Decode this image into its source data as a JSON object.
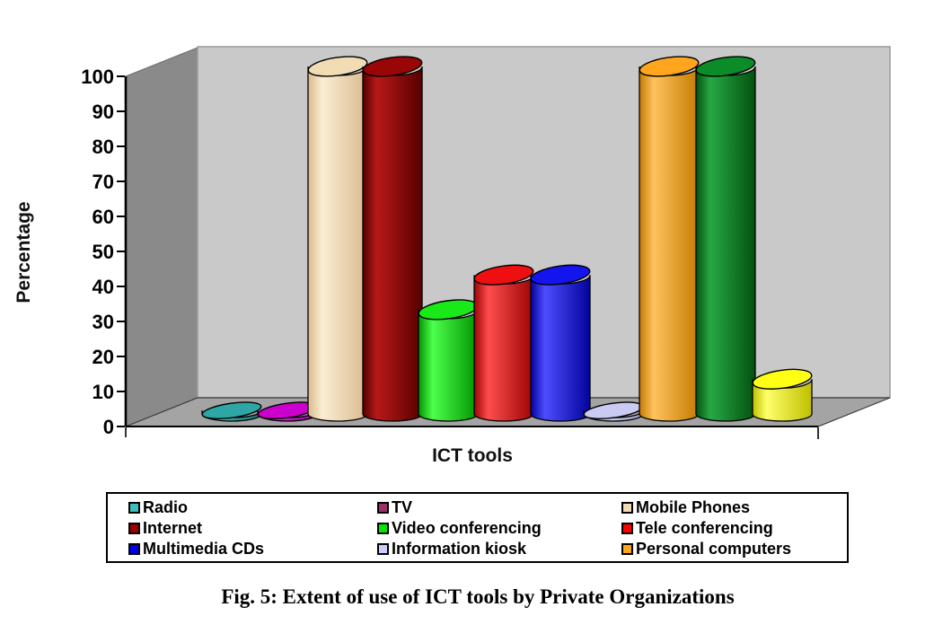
{
  "figure": {
    "caption": "Fig. 5: Extent of use of ICT tools by Private Organizations"
  },
  "chart_data": {
    "type": "bar",
    "subtype": "3d-cylinder",
    "title": "",
    "xlabel": "ICT tools",
    "ylabel": "Percentage",
    "ylim": [
      0,
      100
    ],
    "ytick_interval": 10,
    "ytick_labels": [
      "0",
      "10",
      "20",
      "30",
      "40",
      "50",
      "60",
      "70",
      "80",
      "90",
      "100"
    ],
    "grid": false,
    "legend_position": "bottom",
    "categories": [
      "Radio",
      "TV",
      "Mobile Phones",
      "Internet",
      "Video conferencing",
      "Tele conferencing",
      "Multimedia CDs",
      "Information kiosk",
      "Personal computers",
      "",
      ""
    ],
    "values": [
      1,
      1,
      100,
      100,
      30,
      40,
      40,
      1,
      100,
      100,
      10
    ],
    "bars": [
      {
        "label": "Radio",
        "value": 1,
        "top": "#2FA6A6",
        "light": "#39BEBE",
        "dark": "#1E6F6F"
      },
      {
        "label": "TV",
        "value": 1,
        "top": "#CC00CC",
        "light": "#E02CE0",
        "dark": "#8F008F"
      },
      {
        "label": "Mobile Phones",
        "value": 100,
        "top": "#F2DCB4",
        "light": "#FBEED4",
        "dark": "#D9B98C"
      },
      {
        "label": "Internet",
        "value": 100,
        "top": "#9A0505",
        "light": "#B81818",
        "dark": "#570000"
      },
      {
        "label": "Video conferencing",
        "value": 30,
        "top": "#19E819",
        "light": "#4DFF4D",
        "dark": "#009400"
      },
      {
        "label": "Tele conferencing",
        "value": 40,
        "top": "#EE1010",
        "light": "#FF4D4D",
        "dark": "#9C0303"
      },
      {
        "label": "Multimedia CDs",
        "value": 40,
        "top": "#1414EE",
        "light": "#4D4DFF",
        "dark": "#03039C"
      },
      {
        "label": "Information kiosk",
        "value": 1,
        "top": "#CACAF2",
        "light": "#DCDCF8",
        "dark": "#9A9AC8"
      },
      {
        "label": "Personal computers",
        "value": 100,
        "top": "#FFA51E",
        "light": "#FFC25E",
        "dark": "#C47C00"
      },
      {
        "label": "",
        "value": 100,
        "top": "#0C8B29",
        "light": "#27A845",
        "dark": "#02520E"
      },
      {
        "label": "",
        "value": 10,
        "top": "#FFFF14",
        "light": "#FFFF6B",
        "dark": "#BFBF00"
      }
    ],
    "legend": [
      {
        "label": "Radio",
        "color": "#3FBCBC"
      },
      {
        "label": "TV",
        "color": "#993366"
      },
      {
        "label": "Mobile Phones",
        "color": "#F2DCB4"
      },
      {
        "label": "Internet",
        "color": "#990000"
      },
      {
        "label": "Video conferencing",
        "color": "#00E800"
      },
      {
        "label": "Tele conferencing",
        "color": "#FF0000"
      },
      {
        "label": "Multimedia CDs",
        "color": "#0000EE"
      },
      {
        "label": "Information kiosk",
        "color": "#CCCCFF"
      },
      {
        "label": "Personal computers",
        "color": "#FFA51E"
      }
    ],
    "frame_colors": {
      "wall_side": "#8A8A8A",
      "wall_back": "#C9C9C9",
      "floor": "#A4A4A4",
      "axis": "#000000",
      "background": "#FFFFFF"
    }
  }
}
